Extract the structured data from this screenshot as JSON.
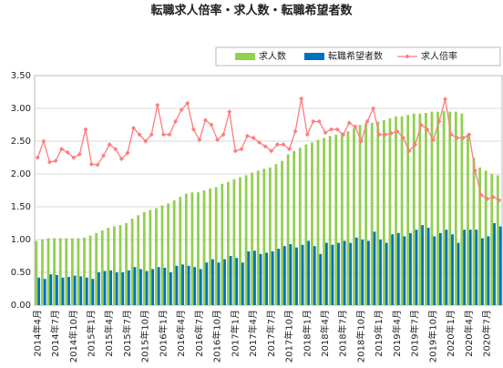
{
  "chart_data": {
    "type": "bar-line",
    "title": "転職求人倍率・求人数・転職希望者数",
    "categories": [
      "2014年4月",
      null,
      null,
      "2014年7月",
      null,
      null,
      "2014年10月",
      null,
      null,
      "2015年1月",
      null,
      null,
      "2015年4月",
      null,
      null,
      "2015年7月",
      null,
      null,
      "2015年10月",
      null,
      null,
      "2016年1月",
      null,
      null,
      "2016年4月",
      null,
      null,
      "2016年7月",
      null,
      null,
      "2016年10月",
      null,
      null,
      "2017年1月",
      null,
      null,
      "2017年4月",
      null,
      null,
      "2017年7月",
      null,
      null,
      "2017年10月",
      null,
      null,
      "2018年1月",
      null,
      null,
      "2018年4月",
      null,
      null,
      "2018年7月",
      null,
      null,
      "2018年10月",
      null,
      null,
      "2019年1月",
      null,
      null,
      "2019年4月",
      null,
      null,
      "2019年7月",
      null,
      null,
      "2019年10月",
      null,
      null,
      "2020年1月",
      null,
      null,
      "2020年4月",
      null,
      null,
      "2020年7月",
      null,
      null
    ],
    "series": [
      {
        "name": "求人数",
        "kind": "bar",
        "color": "#92d050",
        "values": [
          0.98,
          1.0,
          1.02,
          1.02,
          1.02,
          1.02,
          1.02,
          1.02,
          1.03,
          1.06,
          1.1,
          1.14,
          1.18,
          1.2,
          1.22,
          1.25,
          1.32,
          1.37,
          1.42,
          1.45,
          1.48,
          1.52,
          1.55,
          1.6,
          1.65,
          1.7,
          1.72,
          1.72,
          1.75,
          1.78,
          1.8,
          1.85,
          1.88,
          1.92,
          1.95,
          1.98,
          2.02,
          2.05,
          2.08,
          2.1,
          2.15,
          2.2,
          2.3,
          2.35,
          2.4,
          2.45,
          2.48,
          2.52,
          2.55,
          2.58,
          2.6,
          2.62,
          2.65,
          2.7,
          2.75,
          2.78,
          2.78,
          2.8,
          2.82,
          2.85,
          2.88,
          2.88,
          2.9,
          2.92,
          2.92,
          2.93,
          2.95,
          2.95,
          2.96,
          2.95,
          2.95,
          2.92,
          2.6,
          2.25,
          2.1,
          2.05,
          2.0,
          1.98
        ]
      },
      {
        "name": "転職希望者数",
        "kind": "bar",
        "color": "#0070c0",
        "values": [
          0.42,
          0.4,
          0.47,
          0.46,
          0.42,
          0.43,
          0.45,
          0.44,
          0.42,
          0.4,
          0.5,
          0.52,
          0.53,
          0.5,
          0.5,
          0.53,
          0.58,
          0.55,
          0.52,
          0.55,
          0.58,
          0.57,
          0.5,
          0.6,
          0.62,
          0.6,
          0.58,
          0.55,
          0.65,
          0.7,
          0.65,
          0.7,
          0.75,
          0.72,
          0.65,
          0.82,
          0.83,
          0.78,
          0.8,
          0.82,
          0.86,
          0.9,
          0.93,
          0.88,
          0.92,
          0.98,
          0.9,
          0.78,
          0.95,
          0.92,
          0.95,
          0.98,
          0.95,
          1.03,
          1.0,
          0.98,
          1.12,
          1.0,
          0.95,
          1.08,
          1.1,
          1.05,
          1.1,
          1.15,
          1.22,
          1.18,
          1.05,
          1.1,
          1.15,
          1.08,
          0.95,
          1.15,
          1.15,
          1.15,
          1.02,
          1.05,
          1.25,
          1.2
        ]
      },
      {
        "name": "求人倍率",
        "kind": "line",
        "color": "#ff7c80",
        "values": [
          2.25,
          2.5,
          2.18,
          2.2,
          2.38,
          2.33,
          2.25,
          2.3,
          2.68,
          2.15,
          2.14,
          2.28,
          2.45,
          2.38,
          2.23,
          2.32,
          2.7,
          2.6,
          2.5,
          2.6,
          3.05,
          2.6,
          2.6,
          2.8,
          2.98,
          3.08,
          2.68,
          2.52,
          2.82,
          2.75,
          2.52,
          2.6,
          2.95,
          2.35,
          2.38,
          2.58,
          2.55,
          2.48,
          2.42,
          2.35,
          2.45,
          2.45,
          2.38,
          2.65,
          3.15,
          2.6,
          2.8,
          2.8,
          2.63,
          2.68,
          2.68,
          2.6,
          2.78,
          2.72,
          2.5,
          2.8,
          3.0,
          2.6,
          2.6,
          2.62,
          2.65,
          2.55,
          2.35,
          2.45,
          2.75,
          2.68,
          2.52,
          2.8,
          3.14,
          2.6,
          2.55,
          2.55,
          2.6,
          2.05,
          1.68,
          1.62,
          1.65,
          1.6
        ]
      }
    ],
    "ylim": [
      0,
      3.5
    ],
    "yticks": [
      {
        "value": 0,
        "label": "0.00"
      },
      {
        "value": 0.5,
        "label": "0.50"
      },
      {
        "value": 1,
        "label": "1.00"
      },
      {
        "value": 1.5,
        "label": "1.50"
      },
      {
        "value": 2,
        "label": "2.00"
      },
      {
        "value": 2.5,
        "label": "2.50"
      },
      {
        "value": 3,
        "label": "3.00"
      },
      {
        "value": 3.5,
        "label": "3.50"
      }
    ],
    "grid": true
  }
}
